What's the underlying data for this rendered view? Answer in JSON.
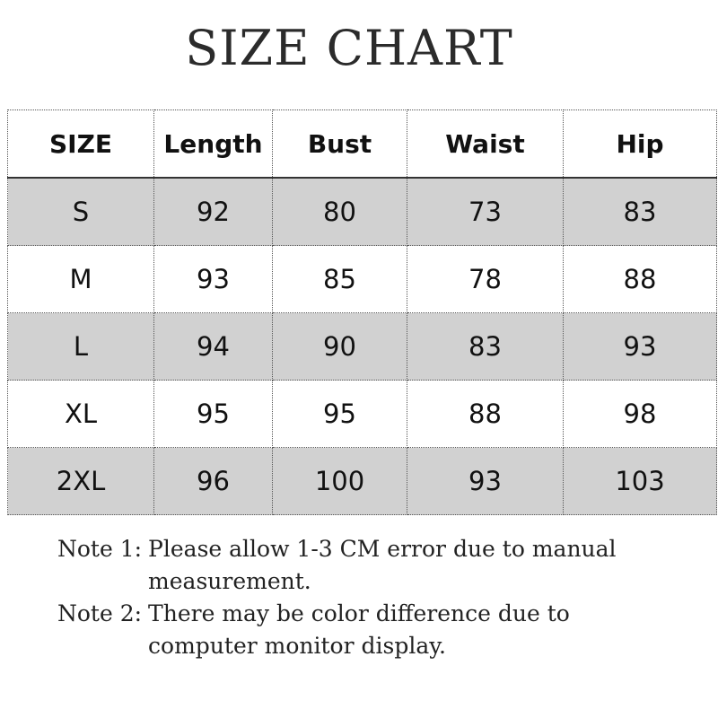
{
  "title": "SIZE CHART",
  "table": {
    "headers": [
      "SIZE",
      "Length",
      "Bust",
      "Waist",
      "Hip"
    ],
    "rows": [
      [
        "S",
        "92",
        "80",
        "73",
        "83"
      ],
      [
        "M",
        "93",
        "85",
        "78",
        "88"
      ],
      [
        "L",
        "94",
        "90",
        "83",
        "93"
      ],
      [
        "XL",
        "95",
        "95",
        "88",
        "98"
      ],
      [
        "2XL",
        "96",
        "100",
        "93",
        "103"
      ]
    ],
    "shade_color": "#d1d1d1"
  },
  "notes": [
    {
      "label": "Note 1:",
      "text": "Please allow 1-3 CM error due to manual measurement."
    },
    {
      "label": "Note 2:",
      "text": "There may be color difference due to computer monitor display."
    }
  ]
}
